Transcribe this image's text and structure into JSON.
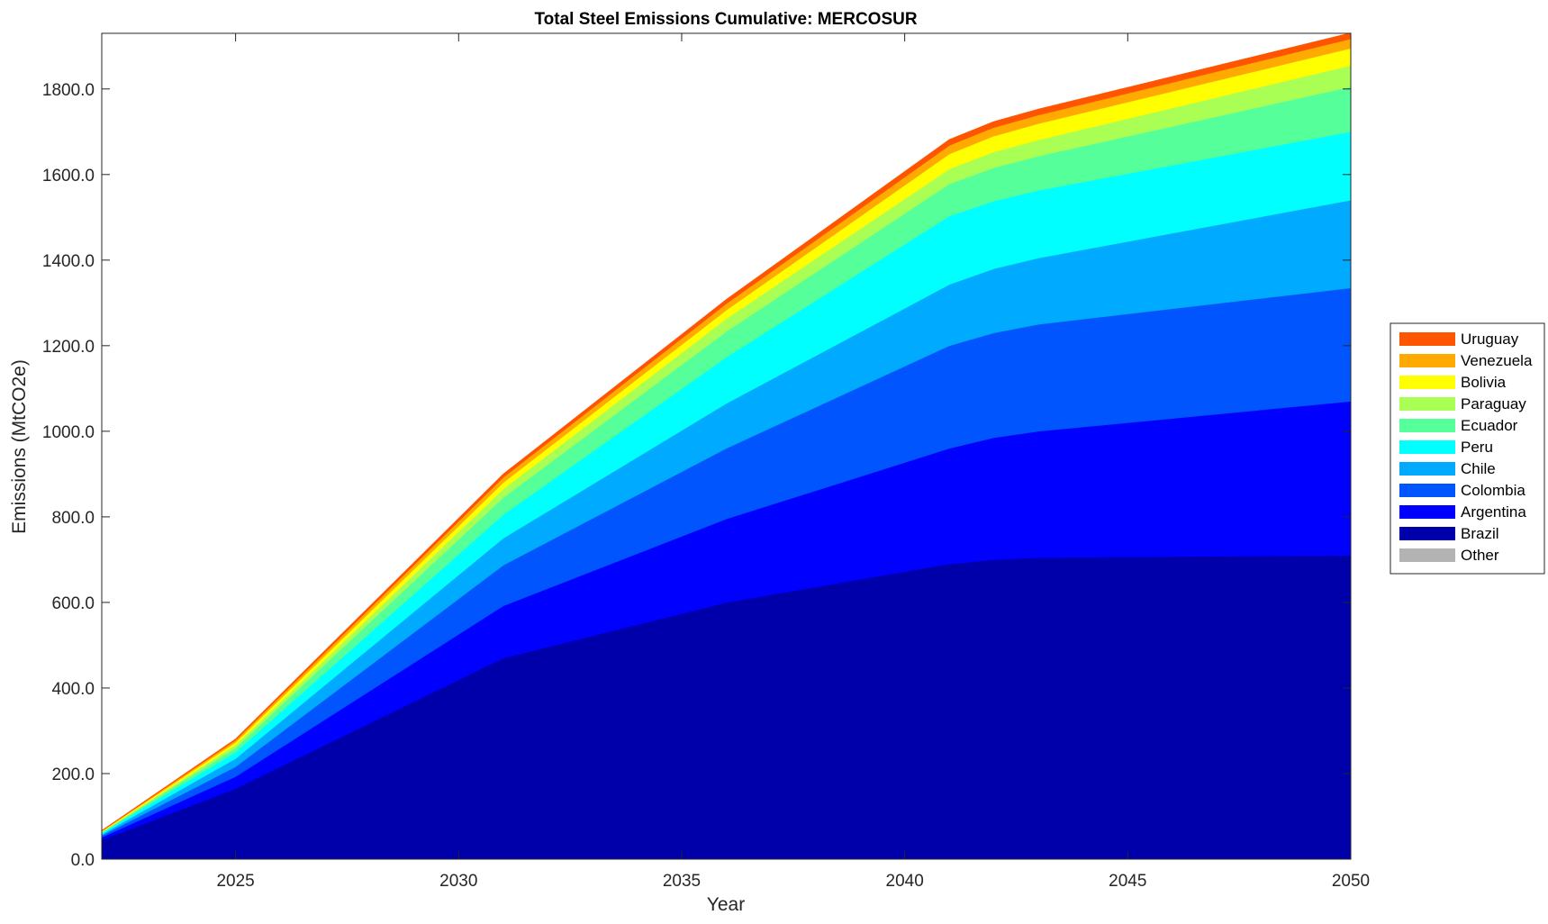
{
  "chart_data": {
    "type": "area",
    "stacked": true,
    "title": "Total Steel Emissions Cumulative: MERCOSUR",
    "xlabel": "Year",
    "ylabel": "Emissions (MtCO2e)",
    "xlim": [
      2022,
      2050
    ],
    "ylim": [
      0,
      1930
    ],
    "xticks": [
      2025,
      2030,
      2035,
      2040,
      2045,
      2050
    ],
    "xtick_labels": [
      "2025",
      "2030",
      "2035",
      "2040",
      "2045",
      "2050"
    ],
    "yticks": [
      0,
      200,
      400,
      600,
      800,
      1000,
      1200,
      1400,
      1600,
      1800
    ],
    "ytick_labels": [
      "0.0",
      "200.0",
      "400.0",
      "600.0",
      "800.0",
      "1000.0",
      "1200.0",
      "1400.0",
      "1600.0",
      "1800.0"
    ],
    "grid": false,
    "legend_position": "right",
    "x": [
      2022,
      2025,
      2031,
      2036,
      2041,
      2042,
      2043,
      2050
    ],
    "series": [
      {
        "name": "Other",
        "color": "#b3b3b3",
        "values": [
          0,
          0,
          0,
          0,
          0,
          0,
          0,
          0
        ]
      },
      {
        "name": "Brazil",
        "color": "#0000aa",
        "values": [
          45,
          165,
          470,
          600,
          690,
          700,
          705,
          710
        ]
      },
      {
        "name": "Argentina",
        "color": "#0000ff",
        "values": [
          6,
          28,
          122,
          195,
          270,
          285,
          295,
          360
        ]
      },
      {
        "name": "Colombia",
        "color": "#0055ff",
        "values": [
          4,
          23,
          95,
          165,
          240,
          245,
          250,
          265
        ]
      },
      {
        "name": "Chile",
        "color": "#00aaff",
        "values": [
          3,
          19,
          63,
          105,
          143,
          150,
          155,
          205
        ]
      },
      {
        "name": "Peru",
        "color": "#00ffff",
        "values": [
          3,
          15,
          55,
          108,
          160,
          158,
          158,
          160
        ]
      },
      {
        "name": "Ecuador",
        "color": "#55ff99",
        "values": [
          2,
          10,
          40,
          60,
          75,
          78,
          80,
          105
        ]
      },
      {
        "name": "Paraguay",
        "color": "#aaff55",
        "values": [
          1,
          7,
          20,
          30,
          35,
          37,
          38,
          50
        ]
      },
      {
        "name": "Bolivia",
        "color": "#ffff00",
        "values": [
          1,
          6,
          15,
          20,
          35,
          37,
          38,
          40
        ]
      },
      {
        "name": "Venezuela",
        "color": "#ffaa00",
        "values": [
          1,
          5,
          12,
          15,
          20,
          20,
          20,
          22
        ]
      },
      {
        "name": "Uruguay",
        "color": "#ff5500",
        "values": [
          1,
          3,
          8,
          10,
          14,
          14,
          14,
          14
        ]
      }
    ],
    "legend_order": [
      "Uruguay",
      "Venezuela",
      "Bolivia",
      "Paraguay",
      "Ecuador",
      "Peru",
      "Chile",
      "Colombia",
      "Argentina",
      "Brazil",
      "Other"
    ]
  }
}
